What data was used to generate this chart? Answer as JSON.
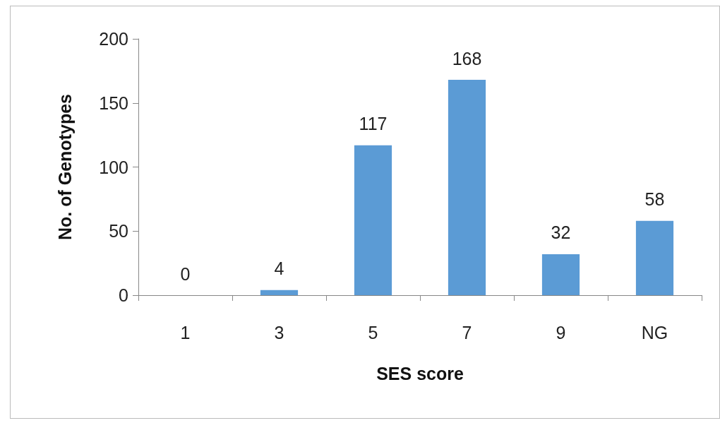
{
  "chart_data": {
    "type": "bar",
    "xlabel": "SES score",
    "ylabel": "No. of Genotypes",
    "categories": [
      "1",
      "3",
      "5",
      "7",
      "9",
      "NG"
    ],
    "values": [
      0,
      4,
      117,
      168,
      32,
      58
    ],
    "color": "#5b9bd5",
    "ylim": [
      0,
      200
    ],
    "yticks": [
      0,
      50,
      100,
      150,
      200
    ],
    "grid": false,
    "data_labels": true
  }
}
